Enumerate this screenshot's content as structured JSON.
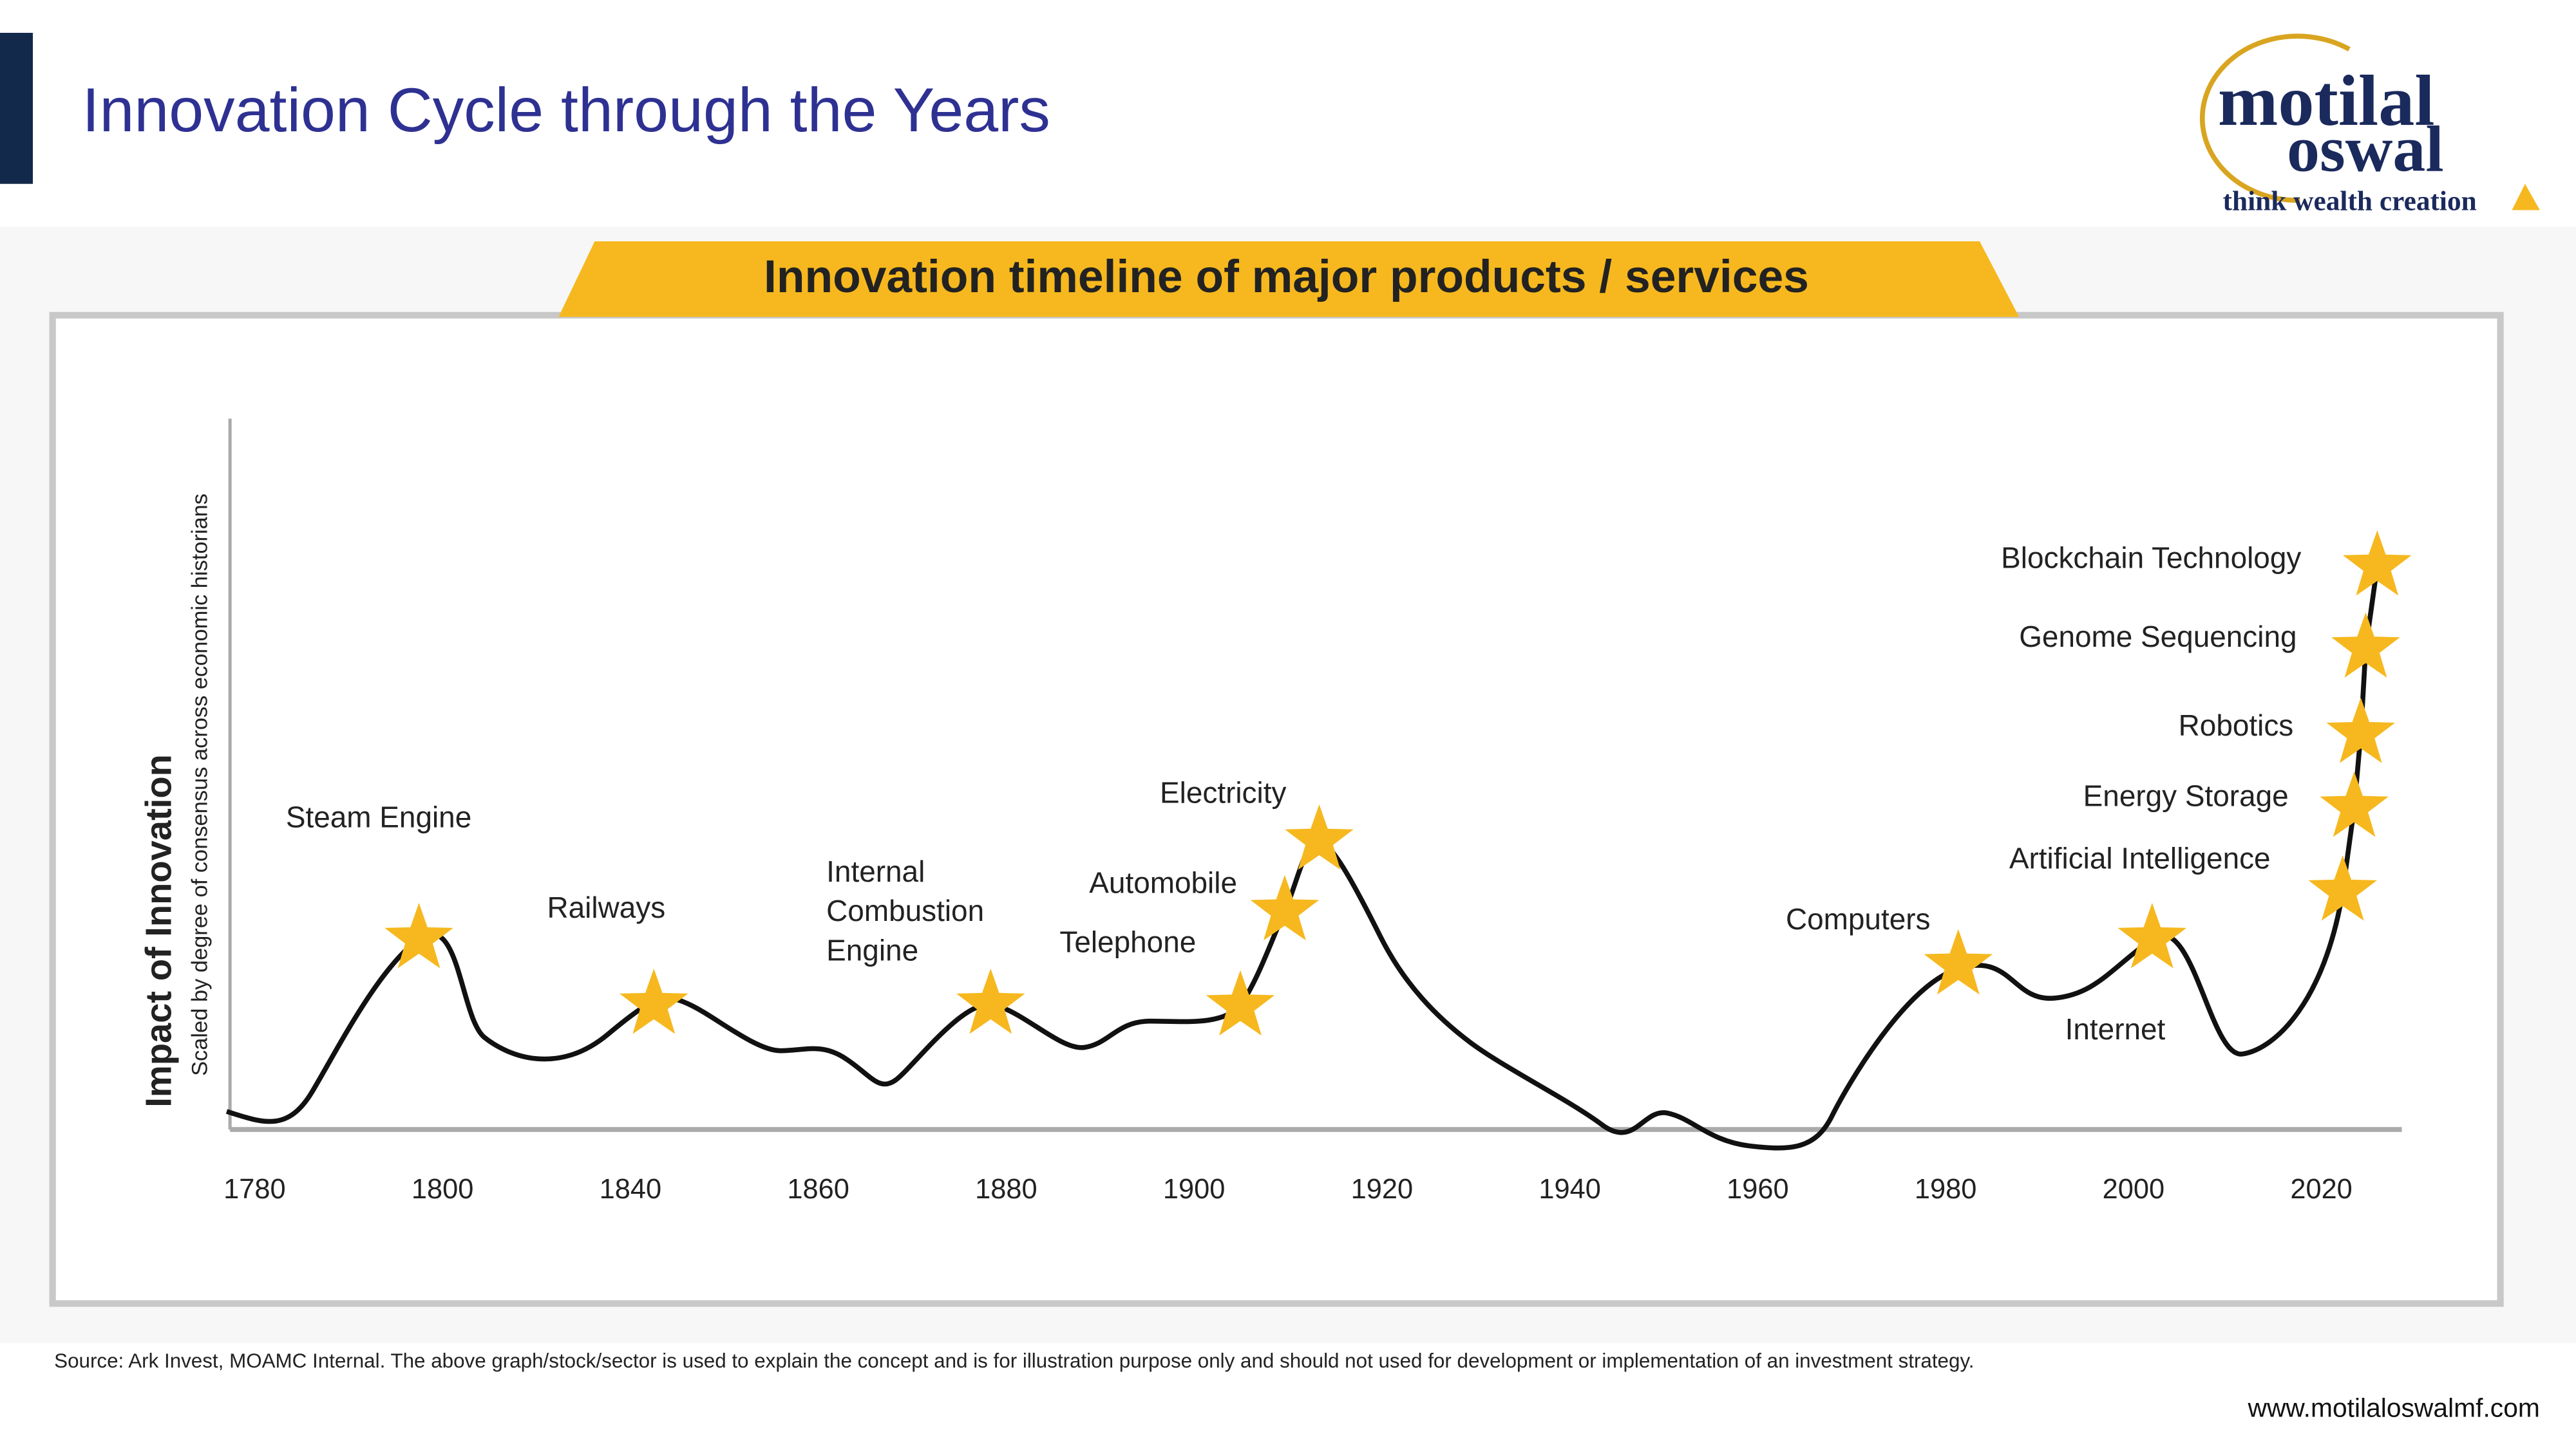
{
  "header": {
    "title": "Innovation Cycle through the Years"
  },
  "logo": {
    "name_line1": "motilal",
    "name_line2": "oswal",
    "tagline": "think wealth creation"
  },
  "chart": {
    "title": "Innovation timeline of major products / services",
    "y_axis": {
      "label": "Impact of Innovation",
      "sublabel": "Scaled by degree of consensus across economic historians"
    },
    "x_axis": {
      "labels": [
        "1780",
        "1800",
        "1840",
        "1860",
        "1880",
        "1900",
        "1920",
        "1940",
        "1960",
        "1980",
        "2000",
        "2020"
      ]
    },
    "innovations": [
      {
        "label": "Steam Engine"
      },
      {
        "label": "Railways"
      },
      {
        "label_lines": [
          "Internal",
          "Combustion",
          "Engine"
        ]
      },
      {
        "label": "Telephone"
      },
      {
        "label": "Automobile"
      },
      {
        "label": "Electricity"
      },
      {
        "label": "Computers"
      },
      {
        "label": "Internet"
      },
      {
        "label": "Artificial Intelligence"
      },
      {
        "label": "Energy Storage"
      },
      {
        "label": "Robotics"
      },
      {
        "label": "Genome Sequencing"
      },
      {
        "label": "Blockchain Technology"
      }
    ]
  },
  "footer": {
    "source": "Source: Ark Invest, MOAMC Internal. The above graph/stock/sector is used to explain the concept and is for illustration purpose only and should not used for development or implementation of an investment strategy.",
    "url": "www.motilaloswalmf.com"
  }
}
